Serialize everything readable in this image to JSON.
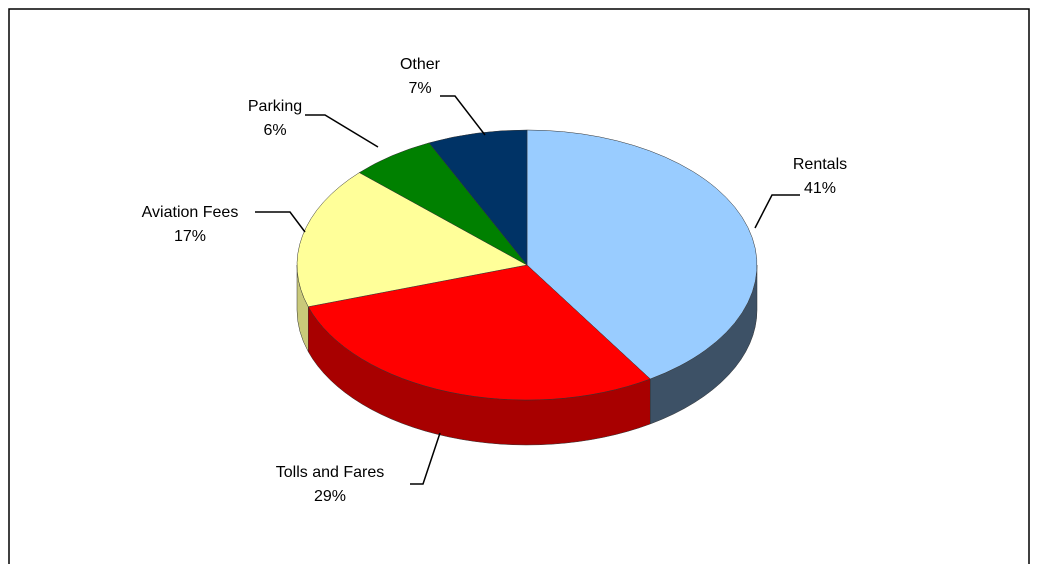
{
  "chart_data": {
    "type": "pie3d",
    "categories": [
      "Rentals",
      "Tolls and Fares",
      "Aviation Fees",
      "Parking",
      "Other"
    ],
    "values": [
      41,
      29,
      17,
      6,
      7
    ],
    "value_labels": [
      "41%",
      "29%",
      "17%",
      "6%",
      "7%"
    ],
    "colors": [
      "#99ccff",
      "#ff0000",
      "#ffff99",
      "#008000",
      "#003366"
    ],
    "side_colors": [
      "#3d5166",
      "#a80000",
      "#c9c97a",
      "#005000",
      "#00203f"
    ]
  }
}
